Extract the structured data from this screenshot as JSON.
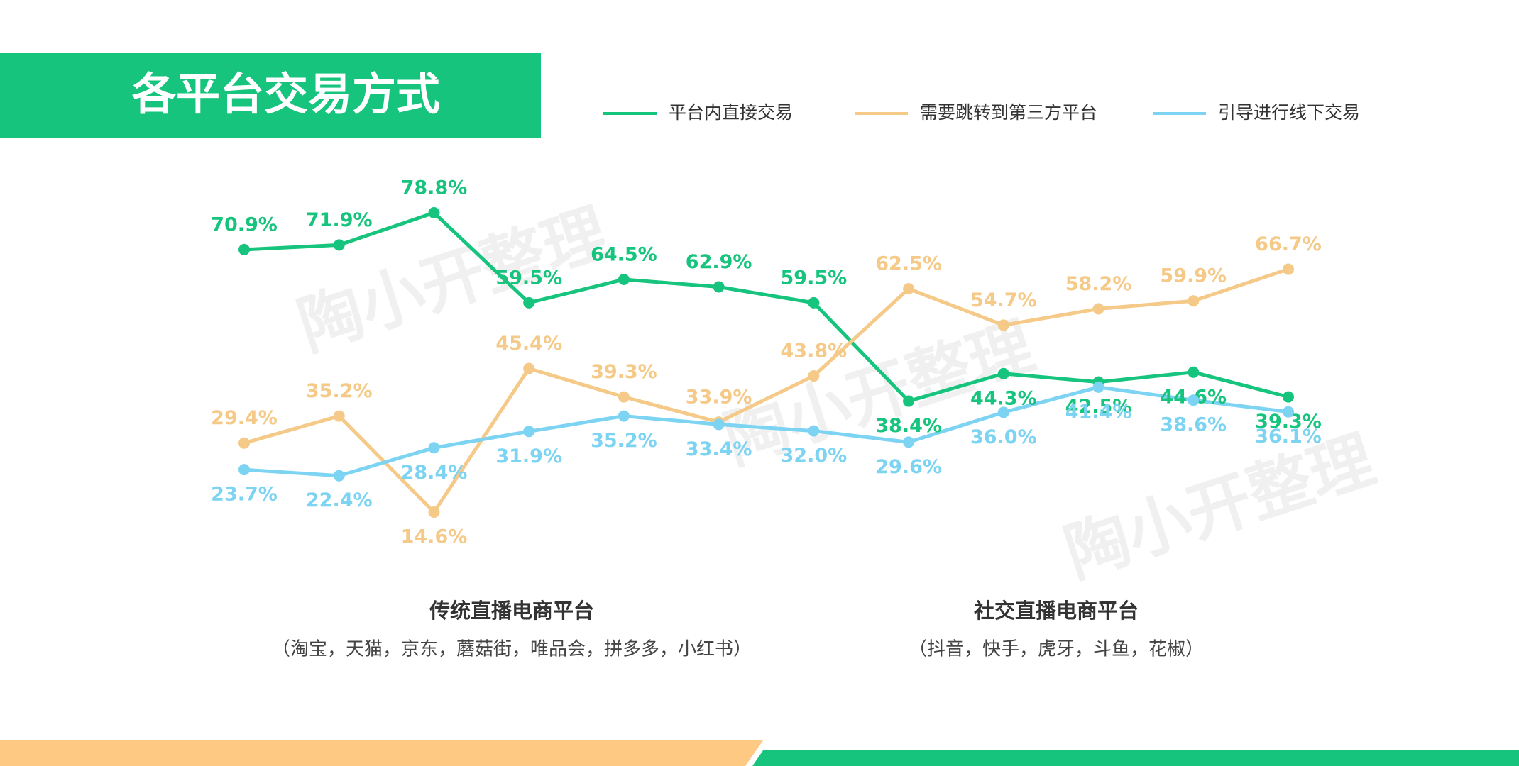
{
  "chart_data": {
    "type": "line",
    "title": "各平台交易方式",
    "watermark": "陶小开整理",
    "series": [
      {
        "name": "平台内直接交易",
        "color": "#17c47e",
        "values": [
          70.9,
          71.9,
          78.8,
          59.5,
          64.5,
          62.9,
          59.5,
          38.4,
          44.3,
          42.5,
          44.6,
          39.3
        ],
        "value_labels": [
          "70.9%",
          "71.9%",
          "78.8%",
          "59.5%",
          "64.5%",
          "62.9%",
          "59.5%",
          "38.4%",
          "44.3%",
          "42.5%",
          "44.6%",
          "39.3%"
        ]
      },
      {
        "name": "需要跳转到第三方平台",
        "color": "#f5c987",
        "values": [
          29.4,
          35.2,
          14.6,
          45.4,
          39.3,
          33.9,
          43.8,
          62.5,
          54.7,
          58.2,
          59.9,
          66.7
        ],
        "value_labels": [
          "29.4%",
          "35.2%",
          "14.6%",
          "45.4%",
          "39.3%",
          "33.9%",
          "43.8%",
          "62.5%",
          "54.7%",
          "58.2%",
          "59.9%",
          "66.7%"
        ]
      },
      {
        "name": "引导进行线下交易",
        "color": "#7dd3f2",
        "values": [
          23.7,
          22.4,
          28.4,
          31.9,
          35.2,
          33.4,
          32.0,
          29.6,
          36.0,
          41.4,
          38.6,
          36.1
        ],
        "value_labels": [
          "23.7%",
          "22.4%",
          "28.4%",
          "31.9%",
          "35.2%",
          "33.4%",
          "32.0%",
          "29.6%",
          "36.0%",
          "41.4%",
          "38.6%",
          "36.1%"
        ]
      }
    ],
    "groups": [
      {
        "title": "传统直播电商平台",
        "subtitle": "（淘宝，天猫，京东，蘑菇街，唯品会，拼多多，小红书）"
      },
      {
        "title": "社交直播电商平台",
        "subtitle": "（抖音，快手，虎牙，斗鱼，花椒）"
      }
    ]
  }
}
